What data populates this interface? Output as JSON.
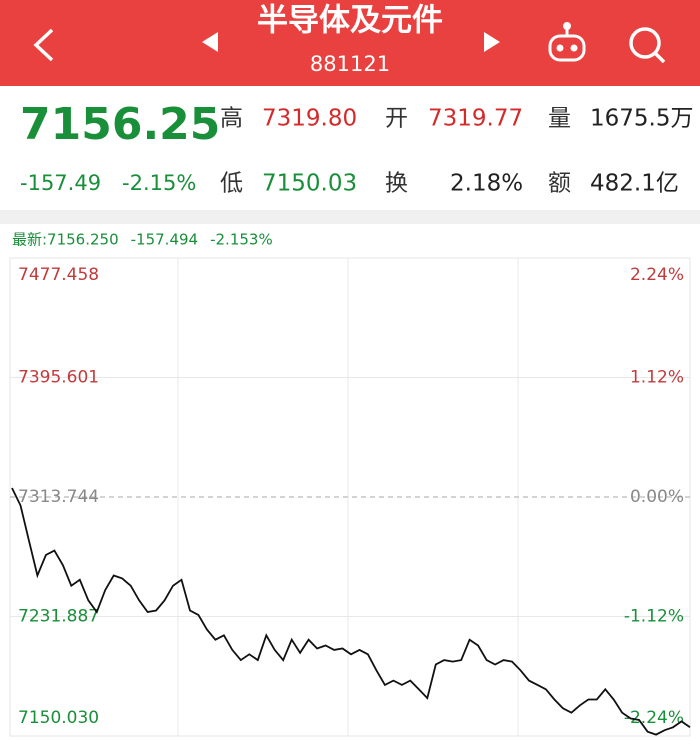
{
  "header": {
    "title": "半导体及元件",
    "code": "881121"
  },
  "quote": {
    "price": "7156.25",
    "change": "-157.49",
    "change_pct": "-2.15%",
    "up_color": "#d42a2a",
    "down_color": "#1a8f3a",
    "stats": [
      {
        "label": "高",
        "value": "7319.80",
        "color": "#d42a2a"
      },
      {
        "label": "开",
        "value": "7319.77",
        "color": "#d42a2a"
      },
      {
        "label": "量",
        "value": "1675.5万",
        "color": "#222222"
      },
      {
        "label": "低",
        "value": "7150.03",
        "color": "#1a8f3a"
      },
      {
        "label": "换",
        "value": "2.18%",
        "color": "#222222"
      },
      {
        "label": "额",
        "value": "482.1亿",
        "color": "#222222"
      }
    ]
  },
  "chart_data": {
    "type": "line",
    "info": [
      "最新:7156.250",
      "-157.494",
      "-2.153%"
    ],
    "series": [
      {
        "color": "#111111",
        "values": [
          7319.9,
          7308,
          7284,
          7260,
          7274,
          7277,
          7267,
          7253,
          7257,
          7243,
          7235,
          7250,
          7260,
          7258,
          7253,
          7243,
          7235,
          7236,
          7243,
          7253,
          7257,
          7236,
          7233,
          7223,
          7216,
          7219,
          7209,
          7202,
          7206,
          7202,
          7219,
          7209,
          7202,
          7216,
          7207,
          7216,
          7210,
          7212,
          7209,
          7210,
          7206,
          7209,
          7206,
          7195,
          7185,
          7188,
          7185,
          7188,
          7182,
          7176,
          7199,
          7202,
          7201,
          7202,
          7216,
          7212,
          7202,
          7199,
          7202,
          7201,
          7195,
          7188,
          7185,
          7182,
          7175,
          7169,
          7166,
          7171,
          7175,
          7175,
          7182,
          7175,
          7166,
          7162,
          7161,
          7153,
          7151,
          7154,
          7156,
          7160,
          7156
        ]
      }
    ],
    "ylim": [
      7150.03,
      7477.458
    ],
    "yticks": [
      7477.458,
      7395.601,
      7313.744,
      7231.887,
      {
        "value": 7150.03,
        "label": "7150.030"
      }
    ],
    "y2lim": [
      -2.24,
      2.24
    ],
    "y2ticks": [
      {
        "value": 2.24,
        "label": "2.24%"
      },
      {
        "value": 1.12,
        "label": "1.12%"
      },
      {
        "value": 0,
        "label": "0.00%"
      },
      {
        "value": -1.12,
        "label": "-1.12%"
      },
      {
        "value": -2.24,
        "label": "-2.24%"
      }
    ],
    "grid": true
  }
}
